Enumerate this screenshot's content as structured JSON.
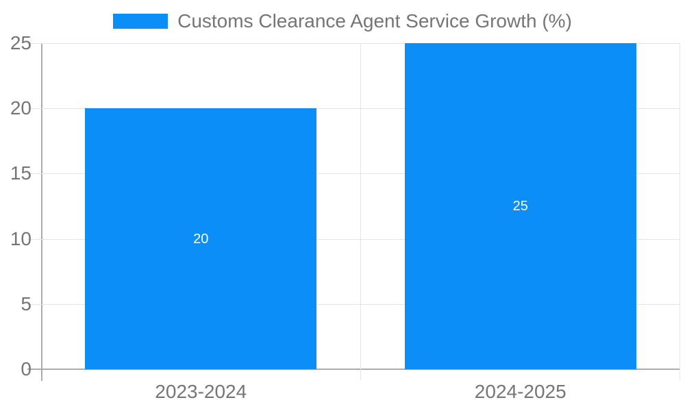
{
  "legend": {
    "label": "Customs Clearance Agent Service Growth (%)"
  },
  "chart_data": {
    "type": "bar",
    "categories": [
      "2023-2024",
      "2024-2025"
    ],
    "values": [
      20,
      25
    ],
    "data_labels": [
      "20",
      "25"
    ],
    "title": "Customs Clearance Agent Service Growth (%)",
    "xlabel": "",
    "ylabel": "",
    "ylim": [
      0,
      25
    ],
    "yticks": [
      0,
      5,
      10,
      15,
      20,
      25
    ],
    "grid": true,
    "legend_position": "top-center",
    "bar_width_fraction": 0.725
  },
  "colors": {
    "bar": "#0b8ef8",
    "grid_line": "#e4e4e4",
    "axis_line": "#ababab",
    "label_text": "#757575",
    "bar_label_text": "#ffffff",
    "background": "#ffffff"
  }
}
